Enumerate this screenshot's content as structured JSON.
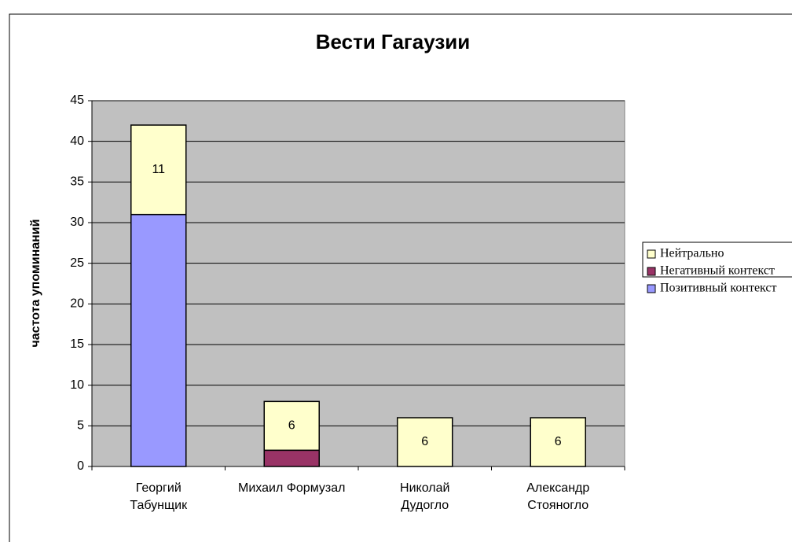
{
  "chart_data": {
    "type": "stacked_bar",
    "title": "Вести Гагаузии",
    "y_label": "частота упоминаний",
    "categories": [
      "Георгий\nТабунщик",
      "Михаил Формузал",
      "Николай\nДудогло",
      "Александр\nСтояногло"
    ],
    "series": [
      {
        "name": "Позитивный контекст",
        "color": "#9999ff",
        "values": [
          31,
          0,
          0,
          0
        ]
      },
      {
        "name": "Негативный контекст",
        "color": "#993366",
        "values": [
          0,
          2,
          0,
          0
        ]
      },
      {
        "name": "Нейтрально",
        "color": "#ffffcc",
        "values": [
          11,
          6,
          6,
          6
        ],
        "labels": true
      }
    ],
    "ylim": [
      0,
      45
    ],
    "yticks": [
      0,
      5,
      10,
      15,
      20,
      25,
      30,
      35,
      40,
      45
    ],
    "grid": true,
    "legend": "right"
  }
}
